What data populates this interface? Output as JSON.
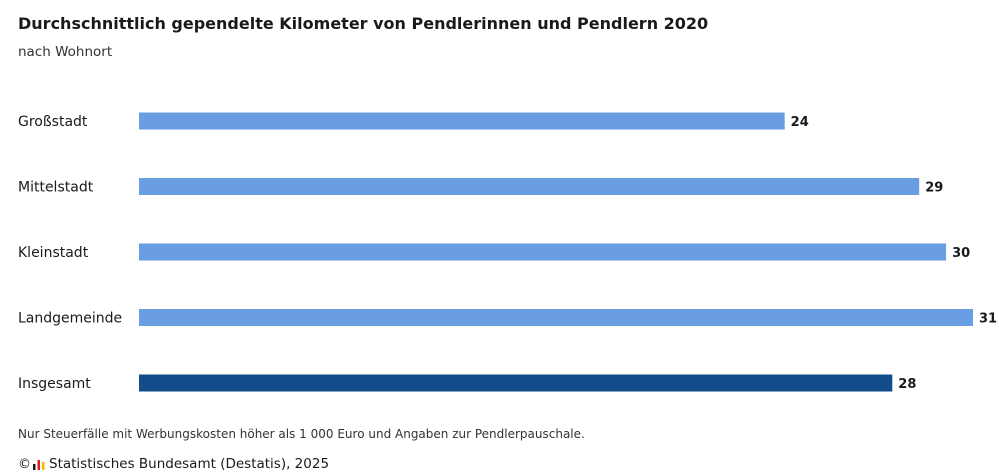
{
  "title": "Durchschnittlich gependelte Kilometer von Pendlerinnen und Pendlern 2020",
  "subtitle": "nach Wohnort",
  "footnote": "Nur Steuerfälle mit Werbungskosten höher als 1 000 Euro und Angaben zur Pendlerpauschale.",
  "source": {
    "copyright_symbol": "©",
    "logo_icon": "destatis-logo-icon",
    "text": "Statistisches Bundesamt (Destatis), 2025"
  },
  "colors": {
    "bar_light": "#6a9ee3",
    "bar_dark": "#134c8a",
    "text": "#1a1a1a"
  },
  "chart_data": {
    "type": "bar",
    "orientation": "horizontal",
    "categories": [
      "Großstadt",
      "Mittelstadt",
      "Kleinstadt",
      "Landgemeinde",
      "Insgesamt"
    ],
    "values": [
      24,
      29,
      30,
      31,
      28
    ],
    "highlight": [
      "Insgesamt"
    ],
    "data_labels": [
      "24",
      "29",
      "30",
      "31",
      "28"
    ],
    "xlim": [
      0,
      31
    ],
    "grid": false,
    "legend": "none"
  }
}
